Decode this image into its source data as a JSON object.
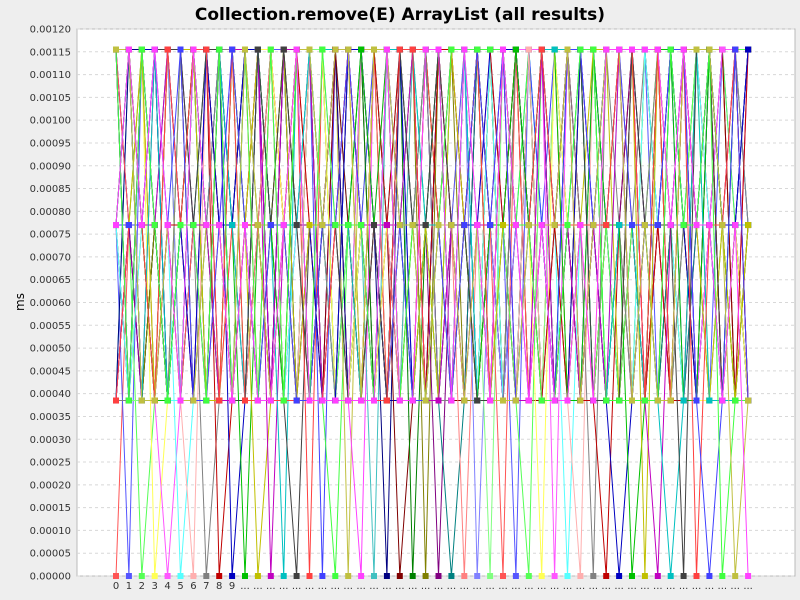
{
  "chart_data": {
    "type": "line",
    "title": "Collection.remove(E) ArrayList (all results)",
    "xlabel": "",
    "ylabel": "ms",
    "ylim": [
      0,
      0.0012
    ],
    "y_ticks": [
      "0.00000",
      "0.00005",
      "0.00010",
      "0.00015",
      "0.00020",
      "0.00025",
      "0.00030",
      "0.00035",
      "0.00040",
      "0.00045",
      "0.00050",
      "0.00055",
      "0.00060",
      "0.00065",
      "0.00070",
      "0.00075",
      "0.00080",
      "0.00085",
      "0.00090",
      "0.00095",
      "0.00100",
      "0.00105",
      "0.00110",
      "0.00115",
      "0.00120"
    ],
    "categories": [
      "0",
      "1",
      "2",
      "3",
      "4",
      "5",
      "6",
      "7",
      "8",
      "9",
      "...",
      "...",
      "...",
      "...",
      "...",
      "...",
      "...",
      "...",
      "...",
      "...",
      "...",
      "...",
      "...",
      "...",
      "...",
      "...",
      "...",
      "...",
      "...",
      "...",
      "...",
      "...",
      "...",
      "...",
      "...",
      "...",
      "...",
      "...",
      "...",
      "...",
      "...",
      "...",
      "...",
      "...",
      "...",
      "...",
      "...",
      "...",
      "...",
      "..."
    ],
    "levels": [
      0,
      0.000385,
      0.00077,
      0.001155
    ],
    "grid": true,
    "legend": "none",
    "series_count": 50,
    "palette": [
      "#ff5555",
      "#5555ff",
      "#55ff55",
      "#ffff55",
      "#ff55ff",
      "#55ffff",
      "#ffafaf",
      "#808080",
      "#c00000",
      "#0000c0",
      "#00c000",
      "#c0c000",
      "#c000c0",
      "#00c0c0",
      "#404040",
      "#ff4040",
      "#4040ff",
      "#40ff40",
      "#c0c040",
      "#ff40ff",
      "#40c0c0",
      "#000080",
      "#800000",
      "#008000",
      "#808000",
      "#800080",
      "#008080",
      "#ff8080",
      "#8080ff",
      "#80ff80"
    ]
  }
}
